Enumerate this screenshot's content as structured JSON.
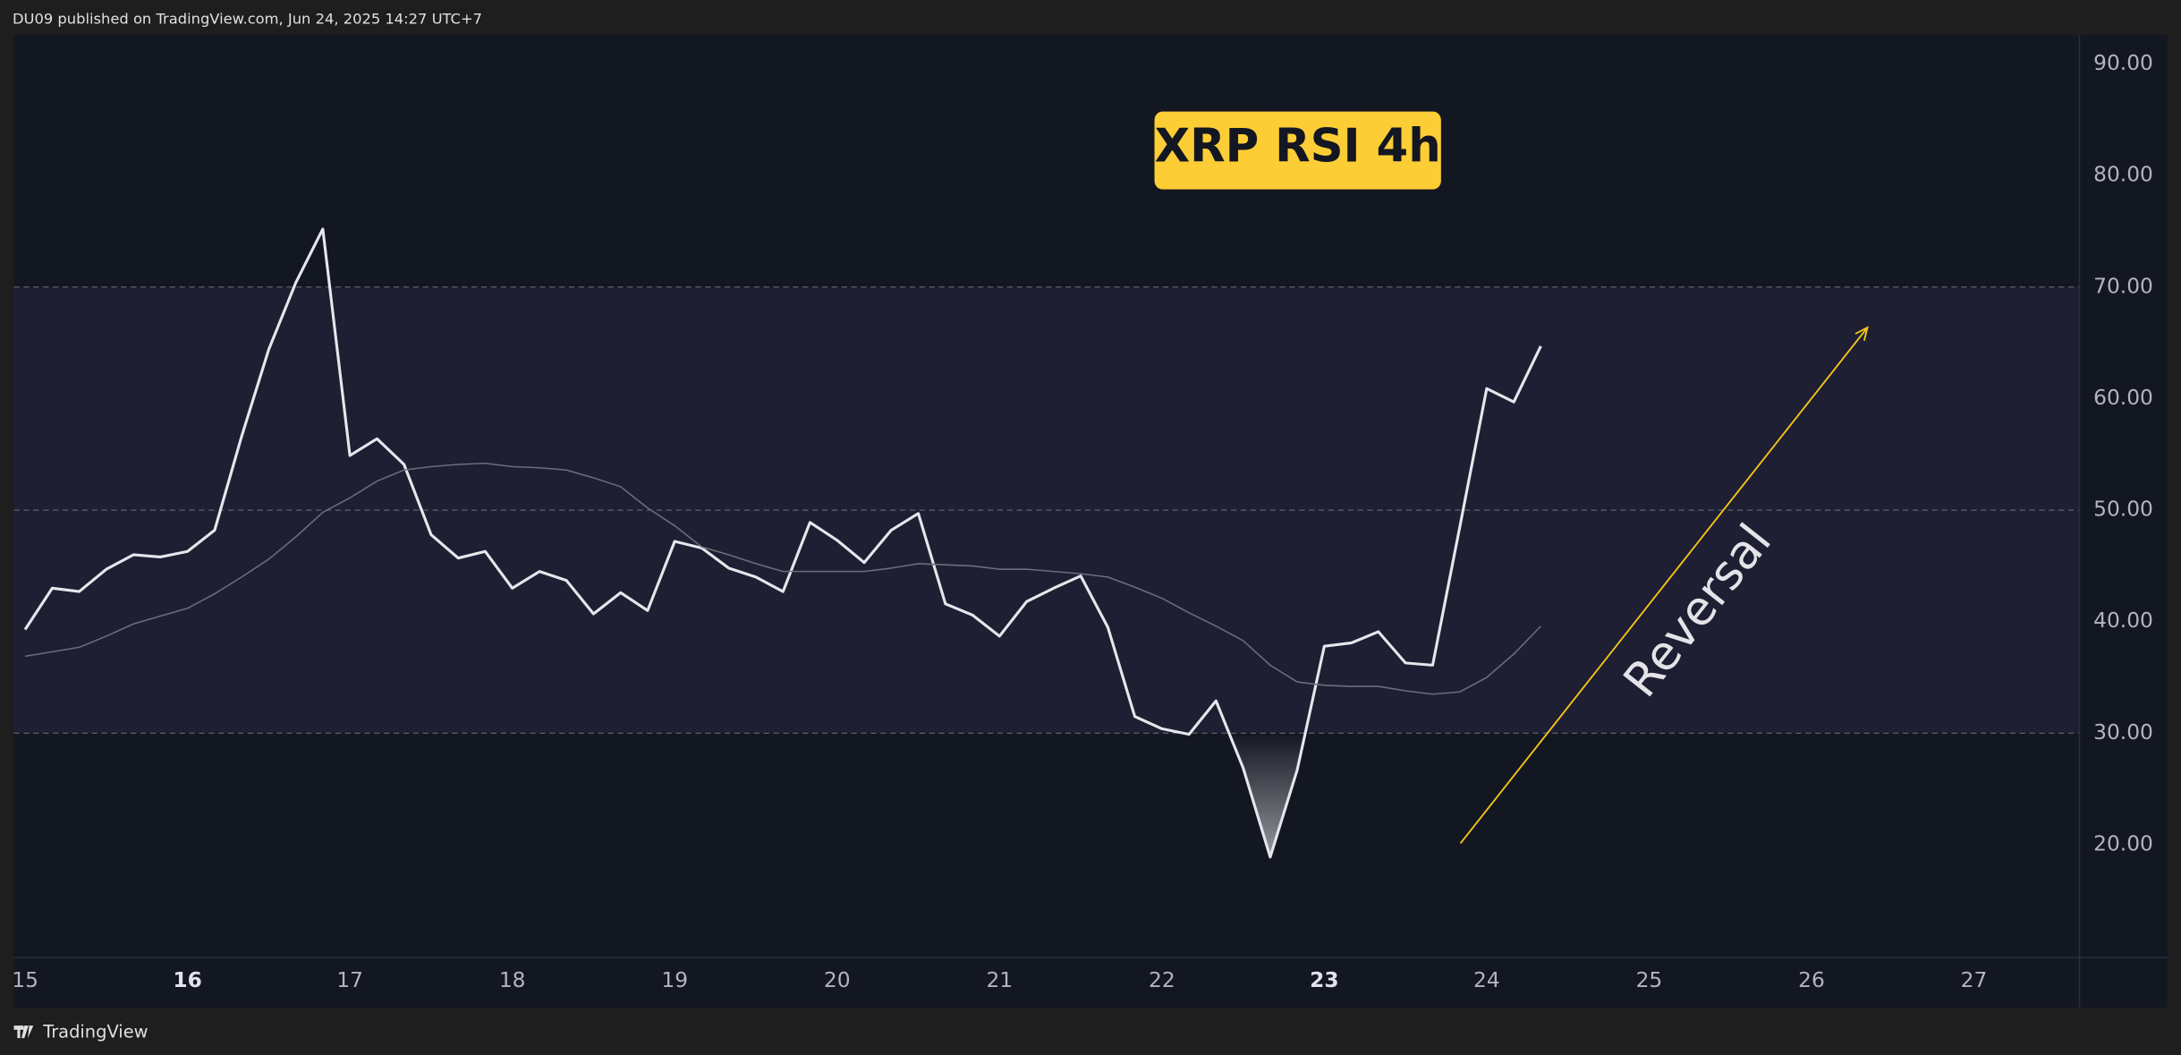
{
  "header": "DU09 published on TradingView.com, Jun 24, 2025 14:27 UTC+7",
  "footer": "TradingView",
  "chart_data": {
    "type": "line",
    "title": "XRP RSI 4h",
    "annotation": "Reversal",
    "x": [
      15,
      15.167,
      15.333,
      15.5,
      15.667,
      15.833,
      16,
      16.167,
      16.333,
      16.5,
      16.667,
      16.833,
      17,
      17.167,
      17.333,
      17.5,
      17.667,
      17.833,
      18,
      18.167,
      18.333,
      18.5,
      18.667,
      18.833,
      19,
      19.167,
      19.333,
      19.5,
      19.667,
      19.833,
      20,
      20.167,
      20.333,
      20.5,
      20.667,
      20.833,
      21,
      21.167,
      21.333,
      21.5,
      21.667,
      21.833,
      22,
      22.167,
      22.333,
      22.5,
      22.667,
      22.833,
      23,
      23.167,
      23.333,
      23.5,
      23.667,
      23.833,
      24,
      24.167,
      24.333
    ],
    "series": [
      {
        "color": "#e6e7ec",
        "width": 2,
        "values": [
          39.3,
          43.0,
          42.7,
          44.7,
          46.0,
          45.8,
          46.3,
          48.2,
          56.6,
          64.4,
          70.4,
          75.2,
          54.9,
          56.4,
          54.1,
          47.8,
          45.7,
          46.3,
          43.0,
          44.5,
          43.7,
          40.7,
          42.6,
          41.0,
          47.2,
          46.6,
          44.8,
          44.0,
          42.7,
          48.9,
          47.3,
          45.3,
          48.2,
          49.7,
          41.6,
          40.6,
          38.7,
          41.8,
          43.0,
          44.1,
          39.5,
          31.5,
          30.4,
          29.9,
          32.9,
          26.9,
          18.9,
          26.7,
          37.8,
          38.1,
          39.1,
          36.3,
          36.1,
          48.4,
          60.9,
          59.7,
          64.7
        ]
      },
      {
        "color": "#6b6e7a",
        "width": 1,
        "values": [
          36.9,
          37.3,
          37.7,
          38.7,
          39.8,
          40.5,
          41.2,
          42.5,
          44.0,
          45.6,
          47.6,
          49.8,
          51.1,
          52.6,
          53.6,
          53.9,
          54.1,
          54.2,
          53.9,
          53.8,
          53.6,
          52.9,
          52.1,
          50.2,
          48.6,
          46.7,
          46.0,
          45.2,
          44.5,
          44.5,
          44.5,
          44.5,
          44.8,
          45.2,
          45.1,
          45.0,
          44.7,
          44.7,
          44.5,
          44.3,
          44.0,
          43.1,
          42.1,
          40.8,
          39.6,
          38.3,
          36.1,
          34.6,
          34.3,
          34.2,
          34.2,
          33.8,
          33.5,
          33.7,
          35.0,
          37.1,
          39.6
        ]
      }
    ],
    "xlim": [
      14.931,
      27.65
    ],
    "xticks": [
      15,
      16,
      17,
      18,
      19,
      20,
      21,
      22,
      23,
      24,
      25,
      26,
      27
    ],
    "xticks_bold": [
      16,
      23
    ],
    "ylim": [
      9.9,
      92.6
    ],
    "yticks": [
      {
        "value": 20,
        "label": "20.00"
      },
      {
        "value": 30,
        "label": "30.00"
      },
      {
        "value": 40,
        "label": "40.00"
      },
      {
        "value": 50,
        "label": "50.00"
      },
      {
        "value": 60,
        "label": "60.00"
      },
      {
        "value": 70,
        "label": "70.00"
      },
      {
        "value": 80,
        "label": "80.00"
      },
      {
        "value": 90,
        "label": "90.00"
      }
    ],
    "band": [
      30,
      70
    ],
    "hlines": [
      30,
      50,
      70
    ],
    "band_color": "#1e1f33",
    "oversold_fill": true
  }
}
